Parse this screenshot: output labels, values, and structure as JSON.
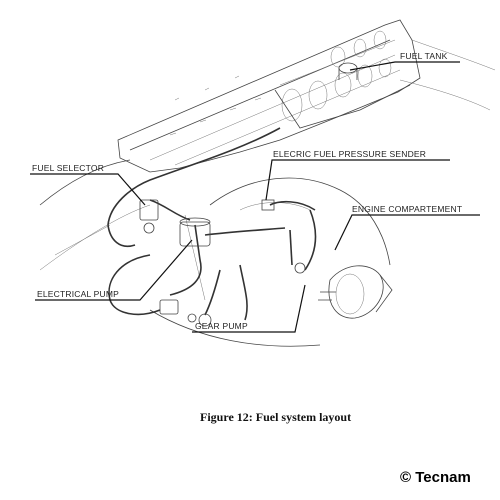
{
  "labels": {
    "fuel_tank": "FUEL TANK",
    "fuel_selector": "FUEL SELECTOR",
    "pressure_sender": "ELECRIC FUEL PRESSURE SENDER",
    "engine_compartment": "ENGINE COMPARTEMENT",
    "electrical_pump": "ELECTRICAL PUMP",
    "gear_pump": "GEAR  PUMP"
  },
  "caption": "Figure 12:  Fuel system layout",
  "copyright": "© Tecnam"
}
